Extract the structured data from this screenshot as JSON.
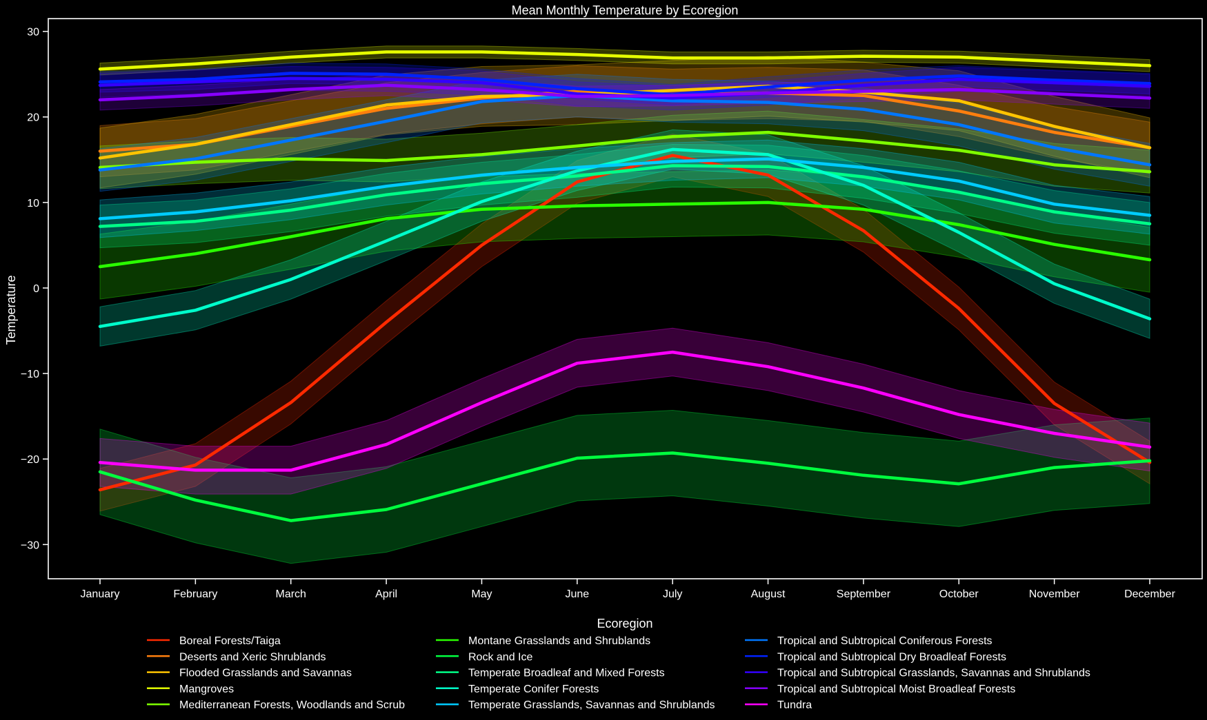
{
  "chart_data": {
    "type": "line",
    "title": "Mean Monthly Temperature by Ecoregion",
    "xlabel": "",
    "ylabel": "Temperature",
    "ylim": [
      -34,
      31.5
    ],
    "yticks": [
      -30,
      -20,
      -10,
      0,
      10,
      20,
      30
    ],
    "grid": false,
    "legend_title": "Ecoregion",
    "legend_position": "bottom",
    "categories": [
      "January",
      "February",
      "March",
      "April",
      "May",
      "June",
      "July",
      "August",
      "September",
      "October",
      "November",
      "December"
    ],
    "series": [
      {
        "name": "Boreal Forests/Taiga",
        "color": "#ff2a00",
        "values": [
          -23.6,
          -20.7,
          -13.4,
          -4.0,
          5.0,
          12.4,
          15.5,
          13.2,
          6.7,
          -2.4,
          -13.5,
          -20.4
        ],
        "band": 2.5
      },
      {
        "name": "Deserts and Xeric Shrublands",
        "color": "#ff7f0e",
        "values": [
          16.0,
          16.8,
          18.9,
          21.0,
          22.2,
          23.0,
          22.6,
          22.8,
          22.5,
          20.7,
          18.2,
          16.4
        ],
        "band": 3.0
      },
      {
        "name": "Flooded Grasslands and Savannas",
        "color": "#ffc400",
        "values": [
          15.2,
          16.8,
          19.1,
          21.4,
          22.4,
          22.6,
          23.1,
          23.6,
          22.9,
          21.9,
          18.9,
          16.4
        ],
        "band": 3.5
      },
      {
        "name": "Mangroves",
        "color": "#e6ff00",
        "values": [
          25.6,
          26.2,
          27.0,
          27.6,
          27.6,
          27.3,
          26.9,
          26.9,
          27.1,
          27.0,
          26.5,
          26.0
        ],
        "band": 0.7
      },
      {
        "name": "Mediterranean Forests, Woodlands and Scrub",
        "color": "#7fff00",
        "values": [
          14.1,
          14.7,
          15.1,
          14.9,
          15.6,
          16.6,
          17.7,
          18.2,
          17.2,
          16.1,
          14.4,
          13.6
        ],
        "band": 2.5
      },
      {
        "name": "Montane Grasslands and Shrublands",
        "color": "#2aff00",
        "values": [
          2.5,
          4.0,
          6.0,
          8.1,
          9.2,
          9.6,
          9.8,
          10.0,
          9.2,
          7.4,
          5.1,
          3.3
        ],
        "band": 3.8
      },
      {
        "name": "Rock and Ice",
        "color": "#00ff3f",
        "values": [
          -21.5,
          -24.8,
          -27.2,
          -25.9,
          -22.9,
          -19.9,
          -19.3,
          -20.5,
          -21.9,
          -22.9,
          -21.0,
          -20.2
        ],
        "band": 5.0
      },
      {
        "name": "Temperate Broadleaf and Mixed Forests",
        "color": "#00ff88",
        "values": [
          7.2,
          7.8,
          9.1,
          10.9,
          12.2,
          13.1,
          14.3,
          14.2,
          13.0,
          11.2,
          8.9,
          7.5
        ],
        "band": 2.5
      },
      {
        "name": "Temperate Conifer Forests",
        "color": "#00ffcc",
        "values": [
          -4.5,
          -2.6,
          1.0,
          5.5,
          10.1,
          13.7,
          16.2,
          15.6,
          12.0,
          6.5,
          0.5,
          -3.6
        ],
        "band": 2.3
      },
      {
        "name": "Temperate Grasslands, Savannas and Shrublands",
        "color": "#00ccff",
        "values": [
          8.1,
          8.9,
          10.2,
          11.9,
          13.2,
          14.1,
          14.8,
          15.1,
          14.1,
          12.5,
          9.8,
          8.5
        ],
        "band": 2.2
      },
      {
        "name": "Tropical and Subtropical Coniferous Forests",
        "color": "#0077ff",
        "values": [
          13.8,
          15.1,
          17.3,
          19.5,
          21.8,
          22.5,
          21.9,
          21.7,
          20.9,
          19.1,
          16.4,
          14.4
        ],
        "band": 2.5
      },
      {
        "name": "Tropical and Subtropical Dry Broadleaf Forests",
        "color": "#0022ff",
        "values": [
          24.1,
          24.4,
          25.1,
          25.0,
          24.4,
          23.3,
          22.6,
          23.5,
          24.3,
          24.8,
          24.3,
          23.9
        ],
        "band": 1.2
      },
      {
        "name": "Tropical and Subtropical Grasslands, Savannas and Shrublands",
        "color": "#3300ff",
        "values": [
          23.7,
          24.1,
          24.5,
          24.4,
          24.0,
          22.7,
          22.2,
          22.8,
          23.7,
          24.4,
          24.0,
          23.6
        ],
        "band": 1.4
      },
      {
        "name": "Tropical and Subtropical Moist Broadleaf Forests",
        "color": "#8800ff",
        "values": [
          22.0,
          22.5,
          23.2,
          23.7,
          23.2,
          22.4,
          22.5,
          22.8,
          23.0,
          23.2,
          22.7,
          22.2
        ],
        "band": 1.2
      },
      {
        "name": "Tundra",
        "color": "#ff00ff",
        "values": [
          -20.4,
          -21.3,
          -21.3,
          -18.3,
          -13.4,
          -8.8,
          -7.5,
          -9.2,
          -11.7,
          -14.8,
          -17.0,
          -18.6
        ],
        "band": 2.8
      }
    ]
  }
}
